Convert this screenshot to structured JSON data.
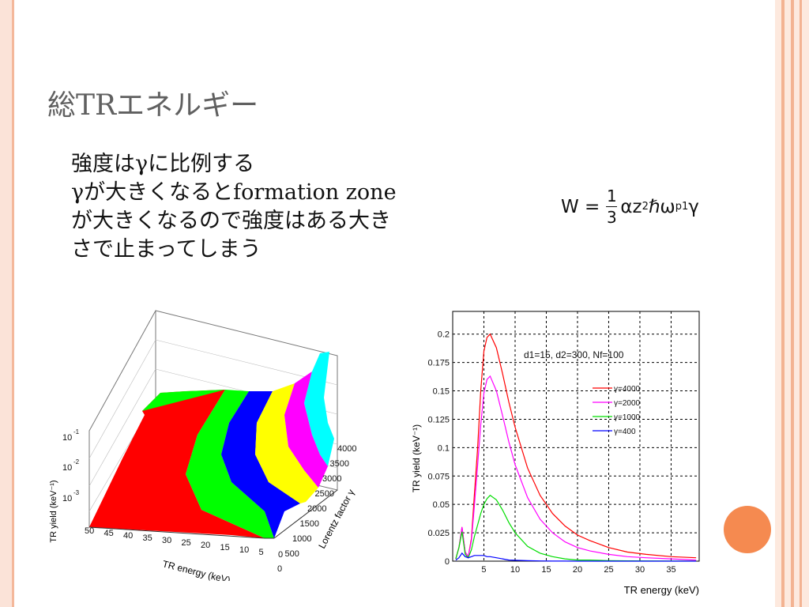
{
  "slide": {
    "title": "総TRエネルギー",
    "body_lines": [
      "強度はγに比例する",
      "γが大きくなるとformation zone",
      "が大きくなるので強度はある大き",
      "さで止まってしまう"
    ],
    "formula": {
      "lhs": "W =",
      "numerator": "1",
      "denominator": "3",
      "alpha_z": "αz",
      "exp": "2",
      "hbar_omega": "ℏω",
      "sub": "p1",
      "gamma": "γ"
    }
  },
  "colors": {
    "red": "#ff0000",
    "green": "#00ff00",
    "blue": "#0000ff",
    "yellow": "#ffff00",
    "magenta": "#ff00ff",
    "cyan": "#00ffff",
    "accent": "#f58a50"
  },
  "plot3d": {
    "ylabel": "TR yield (keV⁻¹)",
    "z_ticks": [
      "10",
      "10",
      "10"
    ],
    "z_exponents": [
      "-1",
      "-2",
      "-3"
    ],
    "x_label": "TR energy (keV)",
    "x_ticks": [
      "50",
      "45",
      "40",
      "35",
      "30",
      "25",
      "20",
      "15",
      "10",
      "5",
      "0"
    ],
    "y_label": "Lorentz factor γ",
    "y_ticks": [
      "4000",
      "3500",
      "3000",
      "2500",
      "2000",
      "1500",
      "1000",
      "500",
      "0"
    ]
  },
  "chart_data": {
    "type": "line",
    "xlabel": "TR energy (keV)",
    "ylabel": "TR yield (keV⁻¹)",
    "annotation": "d1=15, d2=300, Nf=100",
    "xlim": [
      0,
      39.5
    ],
    "ylim": [
      0,
      0.22
    ],
    "x_ticks": [
      5,
      10,
      15,
      20,
      25,
      30,
      35
    ],
    "y_ticks": [
      0,
      0.025,
      0.05,
      0.075,
      0.1,
      0.125,
      0.15,
      0.175,
      0.2
    ],
    "y_tick_labels": [
      "0",
      "0.025",
      "0.05",
      "0.075",
      "0.1",
      "0.125",
      "0.15",
      "0.175",
      "0.2"
    ],
    "grid": true,
    "legend_position": "right",
    "x": [
      0.5,
      1,
      1.5,
      2,
      2.5,
      3,
      3.5,
      4,
      4.5,
      5,
      5.5,
      6,
      7,
      8,
      9,
      10,
      12,
      14,
      16,
      18,
      20,
      22,
      25,
      28,
      31,
      35,
      39
    ],
    "series": [
      {
        "name": "γ=4000",
        "color": "#ff0000",
        "values": [
          0.002,
          0.012,
          0.03,
          0.008,
          0.004,
          0.02,
          0.06,
          0.1,
          0.15,
          0.185,
          0.197,
          0.2,
          0.188,
          0.165,
          0.14,
          0.118,
          0.082,
          0.058,
          0.042,
          0.031,
          0.023,
          0.018,
          0.012,
          0.008,
          0.006,
          0.004,
          0.003
        ]
      },
      {
        "name": "γ=2000",
        "color": "#ff00ff",
        "values": [
          0.002,
          0.012,
          0.03,
          0.008,
          0.004,
          0.018,
          0.05,
          0.085,
          0.12,
          0.148,
          0.16,
          0.163,
          0.15,
          0.128,
          0.105,
          0.085,
          0.056,
          0.037,
          0.025,
          0.017,
          0.012,
          0.009,
          0.006,
          0.004,
          0.003,
          0.002,
          0.001
        ]
      },
      {
        "name": "γ=1000",
        "color": "#00dd00",
        "values": [
          0.002,
          0.012,
          0.026,
          0.006,
          0.003,
          0.01,
          0.022,
          0.032,
          0.042,
          0.05,
          0.055,
          0.058,
          0.054,
          0.045,
          0.034,
          0.025,
          0.013,
          0.007,
          0.004,
          0.002,
          0.001,
          0.001,
          0.0005,
          0.0003,
          0.0002,
          0.0001,
          0.0001
        ]
      },
      {
        "name": "γ=400",
        "color": "#0000ff",
        "values": [
          0.001,
          0.003,
          0.007,
          0.004,
          0.003,
          0.004,
          0.005,
          0.005,
          0.005,
          0.005,
          0.004,
          0.004,
          0.003,
          0.002,
          0.001,
          0.0008,
          0.0004,
          0.0002,
          0.0001,
          0.0001,
          0,
          0,
          0,
          0,
          0,
          0,
          0
        ]
      }
    ]
  }
}
